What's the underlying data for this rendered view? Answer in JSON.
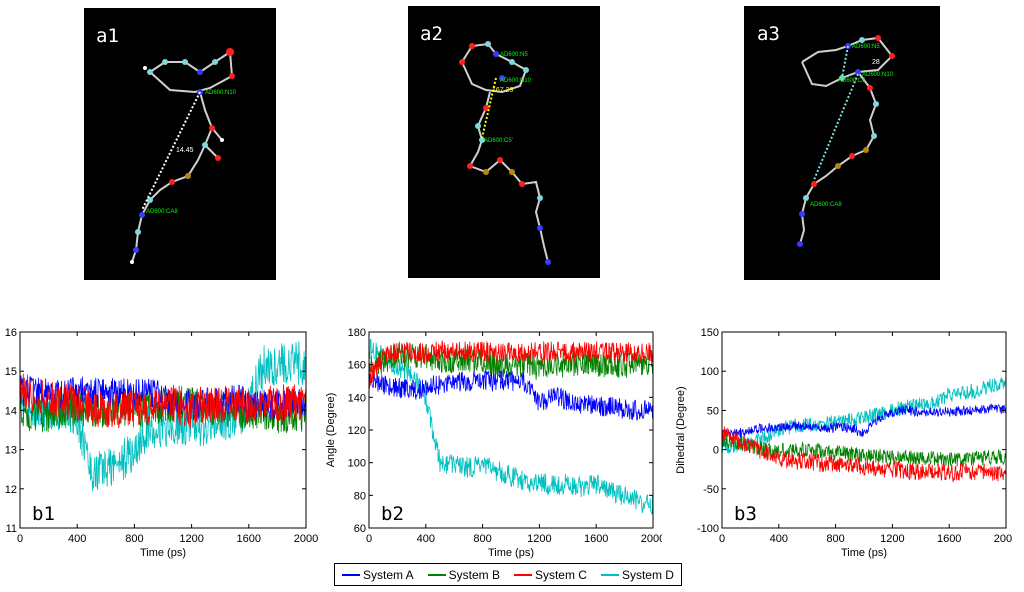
{
  "structure_panels": [
    {
      "label": "a1",
      "annotations": [
        "AD600:N10",
        "14.45",
        "AD600:CA8"
      ]
    },
    {
      "label": "a2",
      "annotations": [
        "AD600:N5",
        "AD600:N10",
        "167.29",
        "AD600:C5'"
      ]
    },
    {
      "label": "a3",
      "annotations": [
        "AD600:N5",
        "28",
        "AD600:C6",
        "AD600:N10",
        "AD600:CA8"
      ]
    }
  ],
  "legend": {
    "entries": [
      {
        "name": "System A",
        "color": "#0000ff"
      },
      {
        "name": "System B",
        "color": "#008000"
      },
      {
        "name": "System C",
        "color": "#ff0000"
      },
      {
        "name": "System D",
        "color": "#00bfbf"
      }
    ]
  },
  "chart_data": [
    {
      "type": "line",
      "panel_label": "b1",
      "xlabel": "Time (ps)",
      "ylabel": "",
      "xlim": [
        0,
        2000
      ],
      "ylim": [
        11,
        16
      ],
      "xticks": [
        0,
        400,
        800,
        1200,
        1600,
        2000
      ],
      "yticks": [
        11,
        12,
        13,
        14,
        15,
        16
      ],
      "x": [
        0,
        100,
        200,
        300,
        400,
        500,
        600,
        700,
        800,
        900,
        1000,
        1100,
        1200,
        1300,
        1400,
        1500,
        1600,
        1700,
        1800,
        1900,
        2000
      ],
      "series": [
        {
          "name": "System A",
          "noise": 0.25,
          "values": [
            14.5,
            14.5,
            14.4,
            14.4,
            14.5,
            14.5,
            14.4,
            14.5,
            14.4,
            14.5,
            14.3,
            14.2,
            14.1,
            14.2,
            14.3,
            14.3,
            14.2,
            14.2,
            14.1,
            14.2,
            14.2
          ]
        },
        {
          "name": "System B",
          "noise": 0.3,
          "values": [
            14.0,
            13.9,
            13.9,
            14.0,
            14.1,
            14.0,
            14.0,
            14.1,
            14.0,
            14.1,
            14.1,
            14.2,
            14.2,
            14.1,
            14.1,
            14.0,
            14.0,
            14.0,
            13.9,
            13.9,
            13.9
          ]
        },
        {
          "name": "System C",
          "noise": 0.3,
          "values": [
            14.6,
            14.4,
            14.3,
            14.2,
            14.2,
            14.1,
            14.0,
            14.0,
            14.1,
            14.0,
            14.1,
            14.1,
            14.0,
            14.2,
            14.1,
            14.1,
            14.1,
            14.1,
            14.2,
            14.2,
            14.2
          ]
        },
        {
          "name": "System D",
          "noise": 0.35,
          "values": [
            14.2,
            14.1,
            14.0,
            14.0,
            13.9,
            12.4,
            12.5,
            12.7,
            12.9,
            13.6,
            13.6,
            13.6,
            13.7,
            13.6,
            13.7,
            13.8,
            14.1,
            15.1,
            15.2,
            15.2,
            15.2
          ]
        }
      ]
    },
    {
      "type": "line",
      "panel_label": "b2",
      "xlabel": "Time (ps)",
      "ylabel": "Angle (Degree)",
      "xlim": [
        0,
        2000
      ],
      "ylim": [
        60,
        180
      ],
      "xticks": [
        0,
        400,
        800,
        1200,
        1600,
        2000
      ],
      "yticks": [
        60,
        80,
        100,
        120,
        140,
        160,
        180
      ],
      "x": [
        0,
        100,
        200,
        300,
        400,
        500,
        600,
        700,
        800,
        900,
        1000,
        1100,
        1200,
        1300,
        1400,
        1500,
        1600,
        1700,
        1800,
        1900,
        2000
      ],
      "series": [
        {
          "name": "System A",
          "noise": 4,
          "values": [
            152,
            148,
            146,
            144,
            146,
            148,
            150,
            150,
            150,
            150,
            150,
            150,
            136,
            142,
            138,
            135,
            135,
            134,
            133,
            132,
            132
          ]
        },
        {
          "name": "System B",
          "noise": 5,
          "values": [
            158,
            162,
            165,
            166,
            165,
            163,
            162,
            163,
            162,
            160,
            158,
            160,
            158,
            160,
            160,
            162,
            160,
            160,
            160,
            160,
            162
          ]
        },
        {
          "name": "System C",
          "noise": 4,
          "values": [
            152,
            165,
            168,
            168,
            167,
            168,
            168,
            168,
            168,
            168,
            168,
            168,
            168,
            168,
            168,
            168,
            168,
            167,
            167,
            168,
            167
          ]
        },
        {
          "name": "System D",
          "noise": 4,
          "values": [
            170,
            165,
            158,
            155,
            140,
            100,
            99,
            97,
            98,
            95,
            92,
            88,
            88,
            86,
            87,
            85,
            87,
            82,
            80,
            76,
            74
          ]
        }
      ]
    },
    {
      "type": "line",
      "panel_label": "b3",
      "xlabel": "Time (ps)",
      "ylabel": "Dihedral (Degree)",
      "xlim": [
        0,
        2000
      ],
      "ylim": [
        -100,
        150
      ],
      "xticks": [
        0,
        400,
        800,
        1200,
        1600,
        2000
      ],
      "yticks": [
        -100,
        -50,
        0,
        50,
        100,
        150
      ],
      "x": [
        0,
        100,
        200,
        300,
        400,
        500,
        600,
        700,
        800,
        900,
        1000,
        1100,
        1200,
        1300,
        1400,
        1500,
        1600,
        1700,
        1800,
        1900,
        2000
      ],
      "series": [
        {
          "name": "System A",
          "noise": 4,
          "values": [
            22,
            20,
            25,
            28,
            28,
            30,
            30,
            28,
            28,
            28,
            20,
            40,
            48,
            50,
            48,
            48,
            48,
            50,
            50,
            52,
            52
          ]
        },
        {
          "name": "System B",
          "noise": 6,
          "values": [
            12,
            10,
            5,
            0,
            -2,
            0,
            0,
            -2,
            -4,
            -5,
            -8,
            -8,
            -10,
            -10,
            -10,
            -12,
            -12,
            -12,
            -10,
            -10,
            -10
          ]
        },
        {
          "name": "System C",
          "noise": 7,
          "values": [
            20,
            12,
            5,
            -5,
            -10,
            -15,
            -15,
            -18,
            -18,
            -20,
            -22,
            -25,
            -25,
            -28,
            -28,
            -28,
            -30,
            -28,
            -28,
            -30,
            -30
          ]
        },
        {
          "name": "System D",
          "noise": 6,
          "values": [
            5,
            5,
            8,
            15,
            25,
            30,
            32,
            32,
            35,
            38,
            40,
            45,
            50,
            55,
            58,
            60,
            70,
            72,
            75,
            82,
            88
          ]
        }
      ]
    }
  ]
}
